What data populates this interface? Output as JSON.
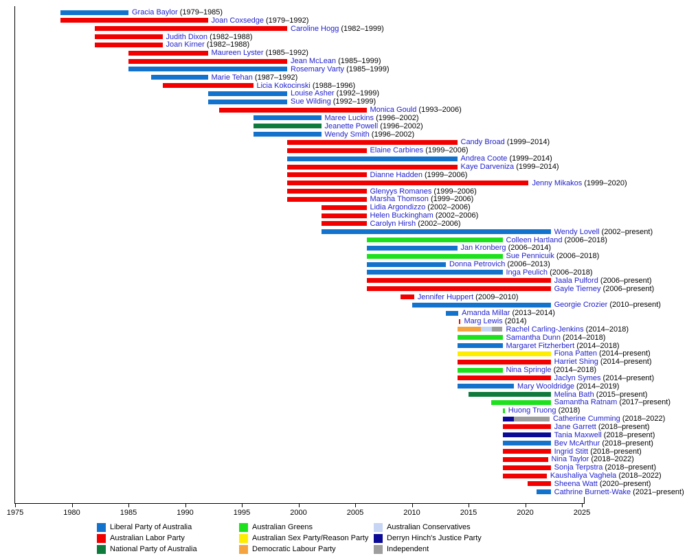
{
  "chart_data": {
    "type": "bar",
    "subtype": "gantt-timeline",
    "title": "",
    "x_axis": {
      "min": 1975,
      "max": 2025,
      "tick_step": 5,
      "ticks": [
        "1975",
        "1980",
        "1985",
        "1990",
        "1995",
        "2000",
        "2005",
        "2010",
        "2015",
        "2020",
        "2025"
      ]
    },
    "present_value": 2022.25,
    "parties": {
      "liberal": {
        "label": "Liberal Party of Australia",
        "color": "#1373CC"
      },
      "labor": {
        "label": "Australian Labor Party",
        "color": "#F20000"
      },
      "national": {
        "label": "National Party of Australia",
        "color": "#0E7A3C"
      },
      "greens": {
        "label": "Australian Greens",
        "color": "#1EE11E"
      },
      "reason": {
        "label": "Australian Sex Party/Reason Party",
        "color": "#FFED00"
      },
      "dlp": {
        "label": "Democratic Labour Party",
        "color": "#F4A33E"
      },
      "conservatives": {
        "label": "Australian Conservatives",
        "color": "#C7D5F4"
      },
      "hinch": {
        "label": "Derryn Hinch's Justice Party",
        "color": "#0A0A96"
      },
      "independent": {
        "label": "Independent",
        "color": "#9E9E9E"
      }
    },
    "legend_columns": [
      [
        "liberal",
        "labor",
        "national"
      ],
      [
        "greens",
        "reason",
        "dlp"
      ],
      [
        "conservatives",
        "hinch",
        "independent"
      ]
    ],
    "members": [
      {
        "name": "Gracia Baylor",
        "years": "(1979–1985)",
        "segments": [
          {
            "party": "liberal",
            "start": 1979,
            "end": 1985
          }
        ]
      },
      {
        "name": "Joan Coxsedge",
        "years": "(1979–1992)",
        "segments": [
          {
            "party": "labor",
            "start": 1979,
            "end": 1992
          }
        ]
      },
      {
        "name": "Caroline Hogg",
        "years": "(1982–1999)",
        "segments": [
          {
            "party": "labor",
            "start": 1982,
            "end": 1999
          }
        ]
      },
      {
        "name": "Judith Dixon",
        "years": "(1982–1988)",
        "segments": [
          {
            "party": "labor",
            "start": 1982,
            "end": 1988
          }
        ]
      },
      {
        "name": "Joan Kirner",
        "years": "(1982–1988)",
        "segments": [
          {
            "party": "labor",
            "start": 1982,
            "end": 1988
          }
        ]
      },
      {
        "name": "Maureen Lyster",
        "years": "(1985–1992)",
        "segments": [
          {
            "party": "labor",
            "start": 1985,
            "end": 1992
          }
        ]
      },
      {
        "name": "Jean McLean",
        "years": "(1985–1999)",
        "segments": [
          {
            "party": "labor",
            "start": 1985,
            "end": 1999
          }
        ]
      },
      {
        "name": "Rosemary Varty",
        "years": "(1985–1999)",
        "segments": [
          {
            "party": "liberal",
            "start": 1985,
            "end": 1999
          }
        ]
      },
      {
        "name": "Marie Tehan",
        "years": "(1987–1992)",
        "segments": [
          {
            "party": "liberal",
            "start": 1987,
            "end": 1992
          }
        ]
      },
      {
        "name": "Licia Kokocinski",
        "years": "(1988–1996)",
        "segments": [
          {
            "party": "labor",
            "start": 1988,
            "end": 1996
          }
        ]
      },
      {
        "name": "Louise Asher",
        "years": "(1992–1999)",
        "segments": [
          {
            "party": "liberal",
            "start": 1992,
            "end": 1999
          }
        ]
      },
      {
        "name": "Sue Wilding",
        "years": "(1992–1999)",
        "segments": [
          {
            "party": "liberal",
            "start": 1992,
            "end": 1999
          }
        ]
      },
      {
        "name": "Monica Gould",
        "years": "(1993–2006)",
        "segments": [
          {
            "party": "labor",
            "start": 1993,
            "end": 2006
          }
        ]
      },
      {
        "name": "Maree Luckins",
        "years": "(1996–2002)",
        "segments": [
          {
            "party": "liberal",
            "start": 1996,
            "end": 2002
          }
        ]
      },
      {
        "name": "Jeanette Powell",
        "years": "(1996–2002)",
        "segments": [
          {
            "party": "national",
            "start": 1996,
            "end": 2002
          }
        ]
      },
      {
        "name": "Wendy Smith",
        "years": "(1996–2002)",
        "segments": [
          {
            "party": "liberal",
            "start": 1996,
            "end": 2002
          }
        ]
      },
      {
        "name": "Candy Broad",
        "years": "(1999–2014)",
        "segments": [
          {
            "party": "labor",
            "start": 1999,
            "end": 2014
          }
        ]
      },
      {
        "name": "Elaine Carbines",
        "years": "(1999–2006)",
        "segments": [
          {
            "party": "labor",
            "start": 1999,
            "end": 2006
          }
        ]
      },
      {
        "name": "Andrea Coote",
        "years": "(1999–2014)",
        "segments": [
          {
            "party": "liberal",
            "start": 1999,
            "end": 2014
          }
        ]
      },
      {
        "name": "Kaye Darveniza",
        "years": "(1999–2014)",
        "segments": [
          {
            "party": "labor",
            "start": 1999,
            "end": 2014
          }
        ]
      },
      {
        "name": "Dianne Hadden",
        "years": "(1999–2006)",
        "segments": [
          {
            "party": "labor",
            "start": 1999,
            "end": 2006
          }
        ]
      },
      {
        "name": "Jenny Mikakos",
        "years": "(1999–2020)",
        "segments": [
          {
            "party": "labor",
            "start": 1999,
            "end": 2020.3
          }
        ]
      },
      {
        "name": "Glenyys Romanes",
        "years": "(1999–2006)",
        "segments": [
          {
            "party": "labor",
            "start": 1999,
            "end": 2006
          }
        ]
      },
      {
        "name": "Marsha Thomson",
        "years": "(1999–2006)",
        "segments": [
          {
            "party": "labor",
            "start": 1999,
            "end": 2006
          }
        ]
      },
      {
        "name": "Lidia Argondizzo",
        "years": "(2002–2006)",
        "segments": [
          {
            "party": "labor",
            "start": 2002,
            "end": 2006
          }
        ]
      },
      {
        "name": "Helen Buckingham",
        "years": "(2002–2006)",
        "segments": [
          {
            "party": "labor",
            "start": 2002,
            "end": 2006
          }
        ]
      },
      {
        "name": "Carolyn Hirsh",
        "years": "(2002–2006)",
        "segments": [
          {
            "party": "labor",
            "start": 2002,
            "end": 2006
          }
        ]
      },
      {
        "name": "Wendy Lovell",
        "years": "(2002–present)",
        "segments": [
          {
            "party": "liberal",
            "start": 2002,
            "end": 2022.25
          }
        ]
      },
      {
        "name": "Colleen Hartland",
        "years": "(2006–2018)",
        "segments": [
          {
            "party": "greens",
            "start": 2006,
            "end": 2018
          }
        ]
      },
      {
        "name": "Jan Kronberg",
        "years": "(2006–2014)",
        "segments": [
          {
            "party": "liberal",
            "start": 2006,
            "end": 2014
          }
        ]
      },
      {
        "name": "Sue Pennicuik",
        "years": "(2006–2018)",
        "segments": [
          {
            "party": "greens",
            "start": 2006,
            "end": 2018
          }
        ]
      },
      {
        "name": "Donna Petrovich",
        "years": "(2006–2013)",
        "segments": [
          {
            "party": "liberal",
            "start": 2006,
            "end": 2013
          }
        ]
      },
      {
        "name": "Inga Peulich",
        "years": "(2006–2018)",
        "segments": [
          {
            "party": "liberal",
            "start": 2006,
            "end": 2018
          }
        ]
      },
      {
        "name": "Jaala Pulford",
        "years": "(2006–present)",
        "segments": [
          {
            "party": "labor",
            "start": 2006,
            "end": 2022.25
          }
        ]
      },
      {
        "name": "Gayle Tierney",
        "years": "(2006–present)",
        "segments": [
          {
            "party": "labor",
            "start": 2006,
            "end": 2022.25
          }
        ]
      },
      {
        "name": "Jennifer Huppert",
        "years": "(2009–2010)",
        "segments": [
          {
            "party": "labor",
            "start": 2009,
            "end": 2010.2
          }
        ]
      },
      {
        "name": "Georgie Crozier",
        "years": "(2010–present)",
        "segments": [
          {
            "party": "liberal",
            "start": 2010,
            "end": 2022.25
          }
        ]
      },
      {
        "name": "Amanda Millar",
        "years": "(2013–2014)",
        "segments": [
          {
            "party": "liberal",
            "start": 2013,
            "end": 2014.1
          }
        ]
      },
      {
        "name": "Marg Lewis",
        "years": "(2014)",
        "segments": [
          {
            "party": "labor",
            "start": 2014.15,
            "end": 2014.3
          }
        ]
      },
      {
        "name": "Rachel Carling-Jenkins",
        "years": "(2014–2018)",
        "segments": [
          {
            "party": "dlp",
            "start": 2014,
            "end": 2016.1
          },
          {
            "party": "conservatives",
            "start": 2016.1,
            "end": 2017.05
          },
          {
            "party": "independent",
            "start": 2017.05,
            "end": 2018
          }
        ]
      },
      {
        "name": "Samantha Dunn",
        "years": "(2014–2018)",
        "segments": [
          {
            "party": "greens",
            "start": 2014,
            "end": 2018
          }
        ]
      },
      {
        "name": "Margaret Fitzherbert",
        "years": "(2014–2018)",
        "segments": [
          {
            "party": "liberal",
            "start": 2014,
            "end": 2018
          }
        ]
      },
      {
        "name": "Fiona Patten",
        "years": "(2014–present)",
        "segments": [
          {
            "party": "reason",
            "start": 2014,
            "end": 2022.25
          }
        ]
      },
      {
        "name": "Harriet Shing",
        "years": "(2014–present)",
        "segments": [
          {
            "party": "labor",
            "start": 2014,
            "end": 2022.25
          }
        ]
      },
      {
        "name": "Nina Springle",
        "years": "(2014–2018)",
        "segments": [
          {
            "party": "greens",
            "start": 2014,
            "end": 2018
          }
        ]
      },
      {
        "name": "Jaclyn Symes",
        "years": "(2014–present)",
        "segments": [
          {
            "party": "labor",
            "start": 2014,
            "end": 2022.25
          }
        ]
      },
      {
        "name": "Mary Wooldridge",
        "years": "(2014–2019)",
        "segments": [
          {
            "party": "liberal",
            "start": 2014,
            "end": 2019
          }
        ]
      },
      {
        "name": "Melina Bath",
        "years": "(2015–present)",
        "segments": [
          {
            "party": "national",
            "start": 2015,
            "end": 2022.25
          }
        ]
      },
      {
        "name": "Samantha Ratnam",
        "years": "(2017–present)",
        "segments": [
          {
            "party": "greens",
            "start": 2017,
            "end": 2022.25
          }
        ]
      },
      {
        "name": "Huong Truong",
        "years": "(2018)",
        "segments": [
          {
            "party": "greens",
            "start": 2018.05,
            "end": 2018.2
          }
        ]
      },
      {
        "name": "Catherine Cumming",
        "years": "(2018–2022)",
        "segments": [
          {
            "party": "hinch",
            "start": 2018,
            "end": 2019
          },
          {
            "party": "independent",
            "start": 2019,
            "end": 2022.15
          }
        ]
      },
      {
        "name": "Jane Garrett",
        "years": "(2018–present)",
        "segments": [
          {
            "party": "labor",
            "start": 2018,
            "end": 2022.25
          }
        ]
      },
      {
        "name": "Tania Maxwell",
        "years": "(2018–present)",
        "segments": [
          {
            "party": "hinch",
            "start": 2018,
            "end": 2022.25
          }
        ]
      },
      {
        "name": "Bev McArthur",
        "years": "(2018–present)",
        "segments": [
          {
            "party": "liberal",
            "start": 2018,
            "end": 2022.25
          }
        ]
      },
      {
        "name": "Ingrid Stitt",
        "years": "(2018–present)",
        "segments": [
          {
            "party": "labor",
            "start": 2018,
            "end": 2022.25
          }
        ]
      },
      {
        "name": "Nina Taylor",
        "years": "(2018–2022)",
        "segments": [
          {
            "party": "labor",
            "start": 2018,
            "end": 2022
          }
        ]
      },
      {
        "name": "Sonja Terpstra",
        "years": "(2018–present)",
        "segments": [
          {
            "party": "labor",
            "start": 2018,
            "end": 2022.25
          }
        ]
      },
      {
        "name": "Kaushaliya Vaghela",
        "years": "(2018–2022)",
        "segments": [
          {
            "party": "labor",
            "start": 2018,
            "end": 2021.9
          }
        ]
      },
      {
        "name": "Sheena Watt",
        "years": "(2020–present)",
        "segments": [
          {
            "party": "labor",
            "start": 2020.2,
            "end": 2022.25
          }
        ]
      },
      {
        "name": "Cathrine Burnett-Wake",
        "years": "(2021–present)",
        "segments": [
          {
            "party": "liberal",
            "start": 2021,
            "end": 2022.25
          }
        ]
      }
    ]
  }
}
